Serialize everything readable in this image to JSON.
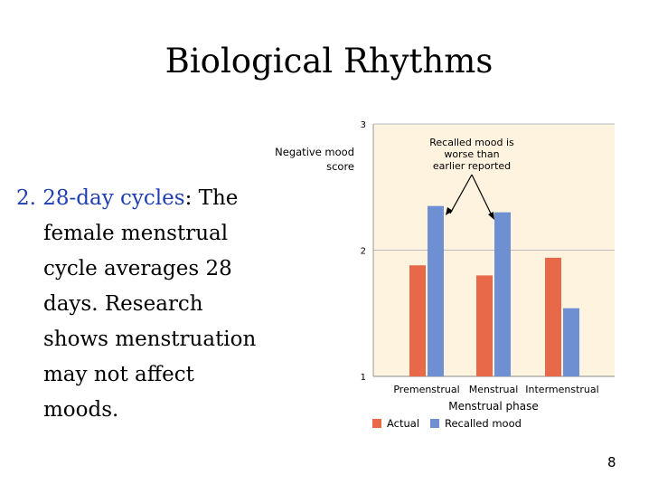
{
  "slide": {
    "title": "Biological Rhythms",
    "text": {
      "lead": "2. 28-day cycles",
      "lead_rest": ": The",
      "lines": [
        "female menstrual",
        "cycle averages 28",
        "days. Research",
        "shows menstruation",
        "may not affect",
        "moods."
      ]
    },
    "page_number": "8"
  },
  "chart_data": {
    "type": "bar",
    "ylabel_lines": [
      "Negative mood",
      "score"
    ],
    "xlabel": "Menstrual phase",
    "categories": [
      "Premenstrual",
      "Menstrual",
      "Intermenstrual"
    ],
    "ylim": [
      1,
      3
    ],
    "yticks": [
      1,
      2,
      3
    ],
    "series": [
      {
        "name": "Actual",
        "values": [
          1.88,
          1.8,
          1.94
        ],
        "color": "#e8684a"
      },
      {
        "name": "Recalled mood",
        "values": [
          2.35,
          2.3,
          1.54
        ],
        "color": "#6f8fd3"
      }
    ],
    "annotation_lines": [
      "Recalled mood is",
      "worse than",
      "earlier reported"
    ],
    "background": "#fdf3de"
  }
}
